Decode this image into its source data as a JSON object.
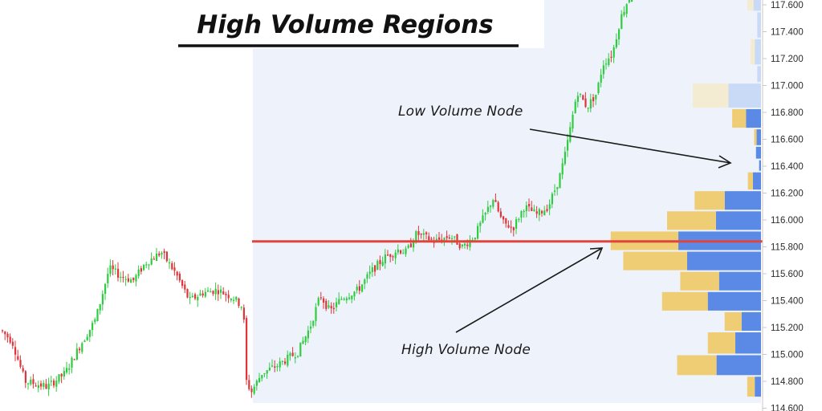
{
  "chart_data": {
    "type": "candlestick-with-volume-profile",
    "title": "High Volume Regions",
    "y_axis": {
      "ticks": [
        "117.600",
        "117.400",
        "117.200",
        "117.000",
        "116.800",
        "116.600",
        "116.400",
        "116.200",
        "116.000",
        "115.800",
        "115.600",
        "115.400",
        "115.200",
        "115.000",
        "114.800",
        "114.600"
      ],
      "range": [
        114.6,
        117.65
      ],
      "side": "right"
    },
    "annotations": [
      {
        "label": "Low Volume Node",
        "points_to_price": 116.42
      },
      {
        "label": "High Volume Node",
        "points_to_price": 115.84
      }
    ],
    "point_of_control_price": 115.84,
    "volume_profile": [
      {
        "price_low": 117.55,
        "price_high": 117.67,
        "buy": 10,
        "sell": 12,
        "faded": true
      },
      {
        "price_low": 117.35,
        "price_high": 117.55,
        "buy": 0,
        "sell": 6,
        "faded": true
      },
      {
        "price_low": 117.15,
        "price_high": 117.35,
        "buy": 7,
        "sell": 10,
        "faded": true
      },
      {
        "price_low": 117.02,
        "price_high": 117.15,
        "buy": 0,
        "sell": 6,
        "faded": true
      },
      {
        "price_low": 116.83,
        "price_high": 117.02,
        "buy": 57,
        "sell": 52,
        "faded": true
      },
      {
        "price_low": 116.68,
        "price_high": 116.83,
        "buy": 22,
        "sell": 24,
        "faded": false
      },
      {
        "price_low": 116.55,
        "price_high": 116.68,
        "buy": 4,
        "sell": 7,
        "faded": false
      },
      {
        "price_low": 116.45,
        "price_high": 116.55,
        "buy": 0,
        "sell": 8,
        "faded": false
      },
      {
        "price_low": 116.36,
        "price_high": 116.45,
        "buy": 0,
        "sell": 3,
        "faded": false
      },
      {
        "price_low": 116.22,
        "price_high": 116.36,
        "buy": 8,
        "sell": 13,
        "faded": false
      },
      {
        "price_low": 116.07,
        "price_high": 116.22,
        "buy": 48,
        "sell": 58,
        "faded": false
      },
      {
        "price_low": 115.92,
        "price_high": 116.07,
        "buy": 78,
        "sell": 72,
        "faded": false
      },
      {
        "price_low": 115.77,
        "price_high": 115.92,
        "buy": 108,
        "sell": 132,
        "faded": false
      },
      {
        "price_low": 115.62,
        "price_high": 115.77,
        "buy": 102,
        "sell": 118,
        "faded": false
      },
      {
        "price_low": 115.47,
        "price_high": 115.62,
        "buy": 62,
        "sell": 67,
        "faded": false
      },
      {
        "price_low": 115.32,
        "price_high": 115.47,
        "buy": 73,
        "sell": 85,
        "faded": false
      },
      {
        "price_low": 115.17,
        "price_high": 115.32,
        "buy": 27,
        "sell": 31,
        "faded": false
      },
      {
        "price_low": 115.0,
        "price_high": 115.17,
        "buy": 44,
        "sell": 41,
        "faded": false
      },
      {
        "price_low": 114.84,
        "price_high": 115.0,
        "buy": 63,
        "sell": 71,
        "faded": false
      },
      {
        "price_low": 114.68,
        "price_high": 114.84,
        "buy": 12,
        "sell": 10,
        "faded": false
      }
    ],
    "candle_path": [
      [
        0,
        115.18
      ],
      [
        14,
        115.1
      ],
      [
        30,
        114.8
      ],
      [
        58,
        114.76
      ],
      [
        80,
        114.86
      ],
      [
        100,
        115.08
      ],
      [
        118,
        115.26
      ],
      [
        135,
        115.64
      ],
      [
        150,
        115.58
      ],
      [
        165,
        115.55
      ],
      [
        180,
        115.68
      ],
      [
        200,
        115.76
      ],
      [
        218,
        115.6
      ],
      [
        235,
        115.4
      ],
      [
        252,
        115.46
      ],
      [
        270,
        115.48
      ],
      [
        290,
        115.42
      ],
      [
        302,
        115.35
      ],
      [
        306,
        114.8
      ],
      [
        312,
        114.72
      ],
      [
        325,
        114.86
      ],
      [
        345,
        114.92
      ],
      [
        370,
        115.02
      ],
      [
        385,
        115.2
      ],
      [
        398,
        115.44
      ],
      [
        410,
        115.32
      ],
      [
        425,
        115.42
      ],
      [
        445,
        115.48
      ],
      [
        462,
        115.62
      ],
      [
        478,
        115.72
      ],
      [
        495,
        115.78
      ],
      [
        505,
        115.76
      ],
      [
        518,
        115.9
      ],
      [
        540,
        115.84
      ],
      [
        560,
        115.88
      ],
      [
        575,
        115.8
      ],
      [
        590,
        115.88
      ],
      [
        600,
        116.0
      ],
      [
        613,
        116.16
      ],
      [
        625,
        115.98
      ],
      [
        638,
        115.94
      ],
      [
        652,
        116.1
      ],
      [
        668,
        116.04
      ],
      [
        682,
        116.1
      ],
      [
        695,
        116.3
      ],
      [
        702,
        116.46
      ],
      [
        710,
        116.7
      ],
      [
        718,
        116.96
      ],
      [
        730,
        116.84
      ],
      [
        742,
        116.94
      ],
      [
        750,
        117.16
      ],
      [
        762,
        117.24
      ],
      [
        772,
        117.5
      ],
      [
        780,
        117.62
      ],
      [
        790,
        117.72
      ]
    ]
  }
}
